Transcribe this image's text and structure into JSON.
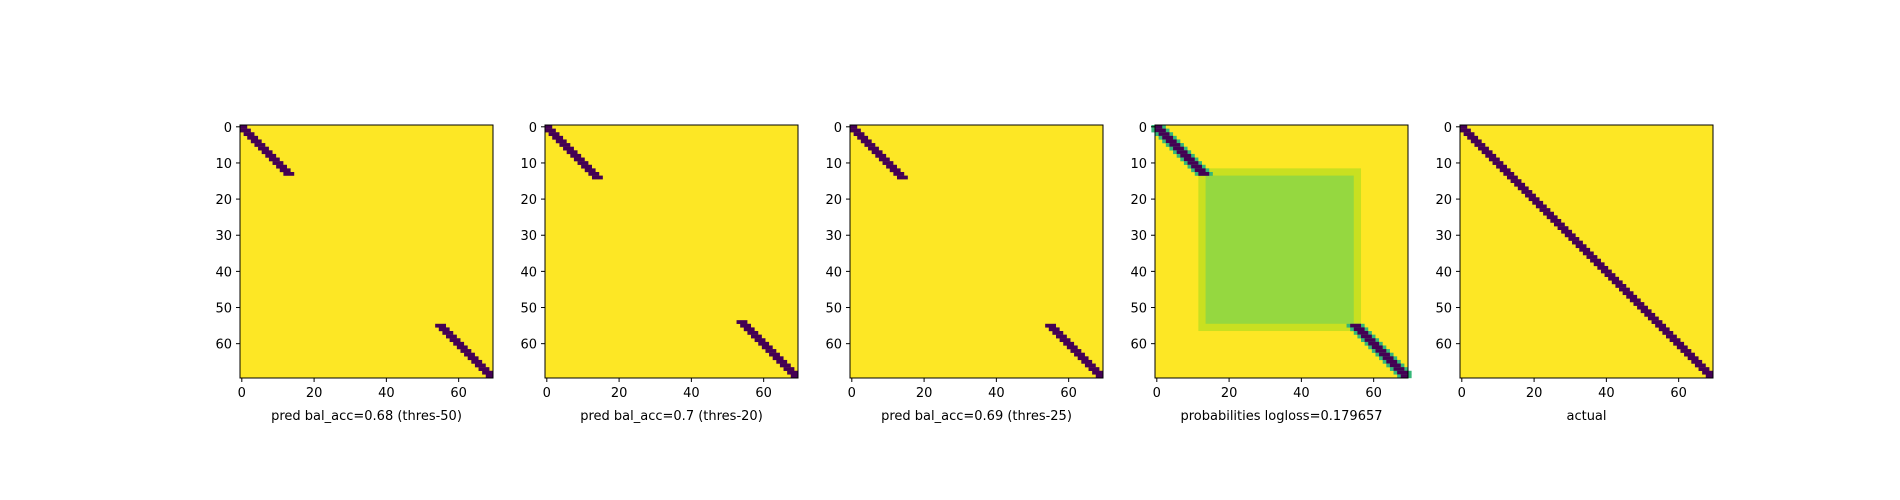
{
  "colors": {
    "background": "#440154",
    "foreground": "#fde725",
    "probability_mid": "#95d840",
    "probability_edge": "#c9e020",
    "transition": "#35b779"
  },
  "chart_data": [
    {
      "type": "heatmap",
      "title": "",
      "xlabel": "pred bal_acc=0.68 (thres-50)",
      "ylabel": "",
      "grid_size": [
        70,
        70
      ],
      "xlim": [
        0,
        69
      ],
      "ylim": [
        69,
        0
      ],
      "xticks": [
        "0",
        "20",
        "40",
        "60"
      ],
      "yticks": [
        "0",
        "10",
        "20",
        "30",
        "40",
        "50",
        "60"
      ],
      "background_value": 1,
      "mark_value": 0,
      "blobs": [
        {
          "start": [
            0,
            0
          ],
          "end": [
            13,
            13
          ],
          "width": 3
        },
        {
          "start": [
            55,
            55
          ],
          "end": [
            69,
            69
          ],
          "width": 3
        }
      ]
    },
    {
      "type": "heatmap",
      "title": "",
      "xlabel": "pred bal_acc=0.7 (thres-20)",
      "ylabel": "",
      "grid_size": [
        70,
        70
      ],
      "xlim": [
        0,
        69
      ],
      "ylim": [
        69,
        0
      ],
      "xticks": [
        "0",
        "20",
        "40",
        "60"
      ],
      "yticks": [
        "0",
        "10",
        "20",
        "30",
        "40",
        "50",
        "60"
      ],
      "background_value": 1,
      "mark_value": 0,
      "blobs": [
        {
          "start": [
            0,
            0
          ],
          "end": [
            14,
            14
          ],
          "width": 3
        },
        {
          "start": [
            54,
            54
          ],
          "end": [
            69,
            69
          ],
          "width": 3
        }
      ]
    },
    {
      "type": "heatmap",
      "title": "",
      "xlabel": "pred bal_acc=0.69 (thres-25)",
      "ylabel": "",
      "grid_size": [
        70,
        70
      ],
      "xlim": [
        0,
        69
      ],
      "ylim": [
        69,
        0
      ],
      "xticks": [
        "0",
        "20",
        "40",
        "60"
      ],
      "yticks": [
        "0",
        "10",
        "20",
        "30",
        "40",
        "50",
        "60"
      ],
      "background_value": 1,
      "mark_value": 0,
      "blobs": [
        {
          "start": [
            0,
            0
          ],
          "end": [
            14,
            14
          ],
          "width": 3
        },
        {
          "start": [
            55,
            55
          ],
          "end": [
            69,
            69
          ],
          "width": 3
        }
      ]
    },
    {
      "type": "heatmap",
      "title": "",
      "xlabel": "probabilities logloss=0.179657",
      "ylabel": "",
      "grid_size": [
        70,
        70
      ],
      "xlim": [
        0,
        69
      ],
      "ylim": [
        69,
        0
      ],
      "xticks": [
        "0",
        "20",
        "40",
        "60"
      ],
      "yticks": [
        "0",
        "10",
        "20",
        "30",
        "40",
        "50",
        "60"
      ],
      "background_value": 1,
      "mark_value": 0,
      "center_square": {
        "from": 14,
        "to": 55,
        "value": 0.75,
        "border_value": 0.88
      },
      "blobs": [
        {
          "start": [
            0,
            0
          ],
          "end": [
            13,
            13
          ],
          "width": 3
        },
        {
          "start": [
            55,
            55
          ],
          "end": [
            69,
            69
          ],
          "width": 3
        }
      ]
    },
    {
      "type": "heatmap",
      "title": "",
      "xlabel": "actual",
      "ylabel": "",
      "grid_size": [
        70,
        70
      ],
      "xlim": [
        0,
        69
      ],
      "ylim": [
        69,
        0
      ],
      "xticks": [
        "0",
        "20",
        "40",
        "60"
      ],
      "yticks": [
        "0",
        "10",
        "20",
        "30",
        "40",
        "50",
        "60"
      ],
      "background_value": 1,
      "mark_value": 0,
      "blobs": [
        {
          "start": [
            0,
            0
          ],
          "end": [
            69,
            69
          ],
          "width": 3
        }
      ]
    }
  ]
}
